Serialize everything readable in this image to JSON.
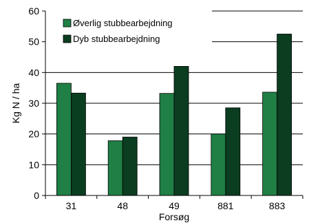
{
  "chart_data": {
    "type": "bar",
    "xlabel": "Forsøg",
    "ylabel": "Kg N / ha",
    "categories": [
      "31",
      "48",
      "49",
      "881",
      "883"
    ],
    "ylim": [
      0,
      60
    ],
    "yticks": [
      0,
      10,
      20,
      30,
      40,
      50,
      60
    ],
    "grid": true,
    "legend_position": "top-left",
    "series": [
      {
        "name": "Øverlig stubbearbejdning",
        "color": "#1f7f45",
        "values": [
          36.5,
          17.8,
          33.2,
          20.0,
          33.6
        ]
      },
      {
        "name": "Dyb stubbearbejdning",
        "color": "#0b3d20",
        "values": [
          33.3,
          19.0,
          42.0,
          28.5,
          52.5
        ]
      }
    ]
  }
}
